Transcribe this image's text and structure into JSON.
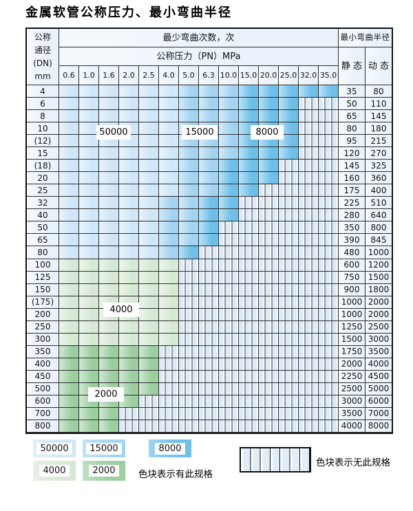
{
  "title": "金属软管公称压力、最小弯曲半径",
  "table": {
    "corner_lines": [
      "公称",
      "通径",
      "(DN)",
      "mm"
    ],
    "cycles_header": "最少弯曲次数，次",
    "pressure_header": "公称压力（PN）MPa",
    "radius_header": "最小弯曲半径",
    "static_label": "静 态",
    "dynamic_label": "动 态",
    "pressure_columns": [
      "0.6",
      "1.0",
      "1.6",
      "2.0",
      "2.5",
      "4.0",
      "5.0",
      "6.3",
      "10.0",
      "15.0",
      "20.0",
      "25.0",
      "32.0",
      "35.0"
    ],
    "cell_legend": "L=50000次 M=15000次 D=8000次 G=4000次 H=2000次 S=无此规格(条纹)",
    "rows": [
      {
        "dn": "4",
        "cells": "LLLLLLMMMDDDDD",
        "static": "35",
        "dynamic": "80"
      },
      {
        "dn": "6",
        "cells": "LLLLLLMMMDDDSS",
        "static": "50",
        "dynamic": "110"
      },
      {
        "dn": "8",
        "cells": "LLLLLLMMMDDDSS",
        "static": "65",
        "dynamic": "145"
      },
      {
        "dn": "10",
        "cells": "LLLLLLMMMDDDSS",
        "static": "80",
        "dynamic": "180"
      },
      {
        "dn": "(12)",
        "cells": "LLLLLLMMMDDDSS",
        "static": "95",
        "dynamic": "215"
      },
      {
        "dn": "15",
        "cells": "LLLLLLMMMDDDSS",
        "static": "120",
        "dynamic": "270"
      },
      {
        "dn": "(18)",
        "cells": "LLLLLLMMDDDSSS",
        "static": "145",
        "dynamic": "325"
      },
      {
        "dn": "20",
        "cells": "LLLLLLMMDDDSSS",
        "static": "160",
        "dynamic": "360"
      },
      {
        "dn": "25",
        "cells": "LLLLLLMMDDSSSS",
        "static": "175",
        "dynamic": "400"
      },
      {
        "dn": "32",
        "cells": "LLLLLMMDDSSSSS",
        "static": "225",
        "dynamic": "510"
      },
      {
        "dn": "40",
        "cells": "LLLLLMMDDSSSSS",
        "static": "280",
        "dynamic": "640"
      },
      {
        "dn": "50",
        "cells": "LLLLLMMDSSSSSS",
        "static": "350",
        "dynamic": "800"
      },
      {
        "dn": "65",
        "cells": "LLLLLMMDSSSSSS",
        "static": "390",
        "dynamic": "845"
      },
      {
        "dn": "80",
        "cells": "LLLLLMDSSSSSSS",
        "static": "480",
        "dynamic": "1000"
      },
      {
        "dn": "100",
        "cells": "GGGGGGSSSSSSSS",
        "static": "600",
        "dynamic": "1200"
      },
      {
        "dn": "125",
        "cells": "GGGGGGSSSSSSSS",
        "static": "750",
        "dynamic": "1500"
      },
      {
        "dn": "150",
        "cells": "GGGGGGSSSSSSSS",
        "static": "900",
        "dynamic": "1800"
      },
      {
        "dn": "(175)",
        "cells": "GGGGGGSSSSSSSS",
        "static": "1000",
        "dynamic": "2000"
      },
      {
        "dn": "200",
        "cells": "GGGGGGSSSSSSSS",
        "static": "1000",
        "dynamic": "2000"
      },
      {
        "dn": "250",
        "cells": "GGGGGGSSSSSSSS",
        "static": "1250",
        "dynamic": "2500"
      },
      {
        "dn": "300",
        "cells": "GGGGGGSSSSSSSS",
        "static": "1500",
        "dynamic": "3000"
      },
      {
        "dn": "350",
        "cells": "HHHHHSSSSSSSSS",
        "static": "1750",
        "dynamic": "3500"
      },
      {
        "dn": "400",
        "cells": "HHHHHSSSSSSSSS",
        "static": "2000",
        "dynamic": "4000"
      },
      {
        "dn": "450",
        "cells": "HHHHHSSSSSSSSS",
        "static": "2250",
        "dynamic": "4500"
      },
      {
        "dn": "500",
        "cells": "HHHHHSSSSSSSSS",
        "static": "2500",
        "dynamic": "5000"
      },
      {
        "dn": "600",
        "cells": "HHHHSSSSSSSSSS",
        "static": "3000",
        "dynamic": "6000"
      },
      {
        "dn": "700",
        "cells": "HHHSSSSSSSSSSS",
        "static": "3500",
        "dynamic": "7000"
      },
      {
        "dn": "800",
        "cells": "HHHSSSSSSSSSSS",
        "static": "4000",
        "dynamic": "8000"
      }
    ]
  },
  "region_labels": [
    {
      "id": "rl-50000",
      "text": "50000"
    },
    {
      "id": "rl-15000",
      "text": "15000"
    },
    {
      "id": "rl-8000",
      "text": "8000"
    },
    {
      "id": "rl-4000",
      "text": "4000"
    },
    {
      "id": "rl-2000",
      "text": "2000"
    }
  ],
  "legend": {
    "swatches": [
      {
        "type": "L",
        "label": "50000"
      },
      {
        "type": "M",
        "label": "15000"
      },
      {
        "type": "D",
        "label": "8000"
      },
      {
        "type": "G",
        "label": "4000"
      },
      {
        "type": "H",
        "label": "2000"
      }
    ],
    "available_note": "色块表示有此规格",
    "unavailable_note": "色块表示无此规格"
  },
  "colors": {
    "L": "#cfe7f8",
    "M": "#a2d4f1",
    "D": "#6cc0ea",
    "G": "#d6e9d4",
    "H": "#9bcfa0",
    "plain": "#eaf3fb",
    "grid": "#2e2e2e"
  }
}
